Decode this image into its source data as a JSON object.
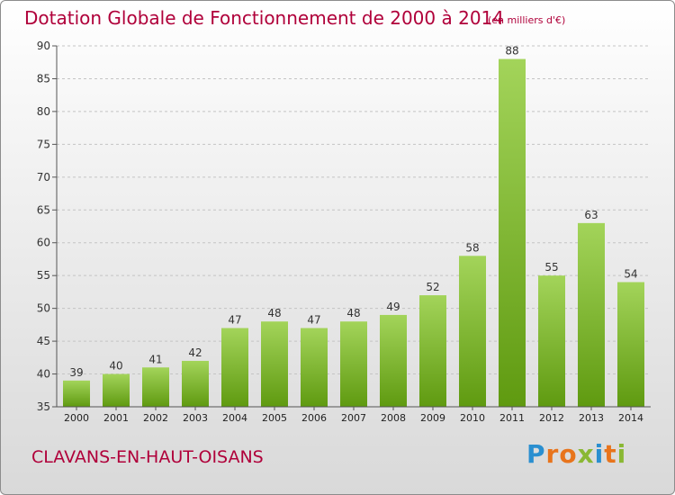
{
  "title": "Dotation Globale de Fonctionnement de 2000 à 2014",
  "subtitle": "(en milliers d'€)",
  "commune": "CLAVANS-EN-HAUT-OISANS",
  "logo": {
    "text": "Proxiti",
    "colors": [
      "#2a8fd0",
      "#e8741c",
      "#e8741c",
      "#8ab833",
      "#2a8fd0",
      "#e8741c",
      "#8ab833"
    ]
  },
  "colors": {
    "bar_light": "#a3d45a",
    "bar_dark": "#5f9a10",
    "title": "#b0003a"
  },
  "chart_data": {
    "type": "bar",
    "title": "Dotation Globale de Fonctionnement de 2000 à 2014",
    "subtitle": "(en milliers d'€)",
    "categories": [
      "2000",
      "2001",
      "2002",
      "2003",
      "2004",
      "2005",
      "2006",
      "2007",
      "2008",
      "2009",
      "2010",
      "2011",
      "2012",
      "2013",
      "2014"
    ],
    "values": [
      39,
      40,
      41,
      42,
      47,
      48,
      47,
      48,
      49,
      52,
      58,
      88,
      55,
      63,
      54
    ],
    "ylim": [
      35,
      90
    ],
    "yticks": [
      35,
      40,
      45,
      50,
      55,
      60,
      65,
      70,
      75,
      80,
      85,
      90
    ],
    "grid": true,
    "xlabel": "",
    "ylabel": ""
  }
}
